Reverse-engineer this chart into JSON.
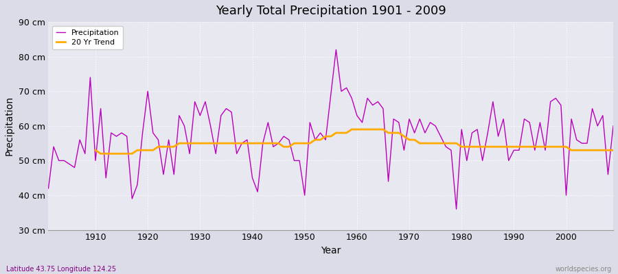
{
  "title": "Yearly Total Precipitation 1901 - 2009",
  "xlabel": "Year",
  "ylabel": "Precipitation",
  "subtitle_left": "Latitude 43.75 Longitude 124.25",
  "subtitle_right": "worldspecies.org",
  "ylim": [
    30,
    90
  ],
  "yticks": [
    30,
    40,
    50,
    60,
    70,
    80,
    90
  ],
  "ytick_labels": [
    "30 cm",
    "40 cm",
    "50 cm",
    "60 cm",
    "70 cm",
    "80 cm",
    "90 cm"
  ],
  "bg_color": "#dcdce8",
  "plot_bg_color": "#e8e8f0",
  "line_color": "#bb00bb",
  "trend_color": "#ffaa00",
  "years": [
    1901,
    1902,
    1903,
    1904,
    1905,
    1906,
    1907,
    1908,
    1909,
    1910,
    1911,
    1912,
    1913,
    1914,
    1915,
    1916,
    1917,
    1918,
    1919,
    1920,
    1921,
    1922,
    1923,
    1924,
    1925,
    1926,
    1927,
    1928,
    1929,
    1930,
    1931,
    1932,
    1933,
    1934,
    1935,
    1936,
    1937,
    1938,
    1939,
    1940,
    1941,
    1942,
    1943,
    1944,
    1945,
    1946,
    1947,
    1948,
    1949,
    1950,
    1951,
    1952,
    1953,
    1954,
    1955,
    1956,
    1957,
    1958,
    1959,
    1960,
    1961,
    1962,
    1963,
    1964,
    1965,
    1966,
    1967,
    1968,
    1969,
    1970,
    1971,
    1972,
    1973,
    1974,
    1975,
    1976,
    1977,
    1978,
    1979,
    1980,
    1981,
    1982,
    1983,
    1984,
    1985,
    1986,
    1987,
    1988,
    1989,
    1990,
    1991,
    1992,
    1993,
    1994,
    1995,
    1996,
    1997,
    1998,
    1999,
    2000,
    2001,
    2002,
    2003,
    2004,
    2005,
    2006,
    2007,
    2008,
    2009
  ],
  "precip": [
    42,
    54,
    50,
    50,
    49,
    48,
    56,
    52,
    74,
    50,
    65,
    45,
    58,
    57,
    58,
    57,
    39,
    43,
    58,
    70,
    58,
    56,
    46,
    56,
    46,
    63,
    60,
    52,
    67,
    63,
    67,
    60,
    52,
    63,
    65,
    64,
    52,
    55,
    56,
    45,
    41,
    55,
    61,
    54,
    55,
    57,
    56,
    50,
    50,
    40,
    61,
    56,
    58,
    56,
    69,
    82,
    70,
    71,
    68,
    63,
    61,
    68,
    66,
    67,
    65,
    44,
    62,
    61,
    53,
    62,
    58,
    62,
    58,
    61,
    60,
    57,
    54,
    53,
    36,
    59,
    50,
    58,
    59,
    50,
    58,
    67,
    57,
    62,
    50,
    53,
    53,
    62,
    61,
    53,
    61,
    53,
    67,
    68,
    66,
    40,
    62,
    56,
    55,
    55,
    65,
    60,
    63,
    46,
    60
  ],
  "trend_years": [
    1910,
    1911,
    1912,
    1913,
    1914,
    1915,
    1916,
    1917,
    1918,
    1919,
    1920,
    1921,
    1922,
    1923,
    1924,
    1925,
    1926,
    1927,
    1928,
    1929,
    1930,
    1931,
    1932,
    1933,
    1934,
    1935,
    1936,
    1937,
    1938,
    1939,
    1940,
    1941,
    1942,
    1943,
    1944,
    1945,
    1946,
    1947,
    1948,
    1949,
    1950,
    1951,
    1952,
    1953,
    1954,
    1955,
    1956,
    1957,
    1958,
    1959,
    1960,
    1961,
    1962,
    1963,
    1964,
    1965,
    1966,
    1967,
    1968,
    1969,
    1970,
    1971,
    1972,
    1973,
    1974,
    1975,
    1976,
    1977,
    1978,
    1979,
    1980,
    1981,
    1982,
    1983,
    1984,
    1985,
    1986,
    1987,
    1988,
    1989,
    1990,
    1991,
    1992,
    1993,
    1994,
    1995,
    1996,
    1997,
    1998,
    1999,
    2000,
    2001,
    2002,
    2003,
    2004,
    2005,
    2006,
    2007,
    2008,
    2009
  ],
  "trend": [
    53,
    52,
    52,
    52,
    52,
    52,
    52,
    52,
    53,
    53,
    53,
    53,
    54,
    54,
    54,
    54,
    55,
    55,
    55,
    55,
    55,
    55,
    55,
    55,
    55,
    55,
    55,
    55,
    55,
    55,
    55,
    55,
    55,
    55,
    55,
    55,
    54,
    54,
    55,
    55,
    55,
    55,
    56,
    56,
    57,
    57,
    58,
    58,
    58,
    59,
    59,
    59,
    59,
    59,
    59,
    59,
    58,
    58,
    58,
    57,
    56,
    56,
    55,
    55,
    55,
    55,
    55,
    55,
    55,
    55,
    54,
    54,
    54,
    54,
    54,
    54,
    54,
    54,
    54,
    54,
    54,
    54,
    54,
    54,
    54,
    54,
    54,
    54,
    54,
    54,
    54,
    53,
    53,
    53,
    53,
    53,
    53,
    53,
    53,
    53
  ],
  "xticks": [
    1910,
    1920,
    1930,
    1940,
    1950,
    1960,
    1970,
    1980,
    1990,
    2000
  ],
  "xtick_labels": [
    "1910",
    "1920",
    "1930",
    "1940",
    "1950",
    "1960",
    "1970",
    "1980",
    "1990",
    "2000"
  ]
}
